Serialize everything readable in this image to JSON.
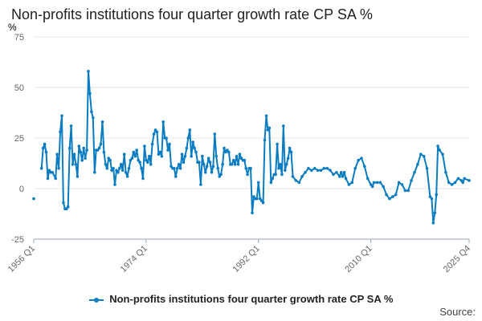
{
  "colors": {
    "series": "#0a7cc1",
    "grid": "#e6e6e6",
    "axis": "#9aa6b5",
    "tick_text": "#666666"
  },
  "source_label": "Source:",
  "chart_data": {
    "type": "line",
    "title": "Non-profits institutions four quarter growth rate CP SA %",
    "ylabel": "%",
    "xlabel": "",
    "ylim": [
      -25,
      75
    ],
    "y_ticks": [
      -25,
      0,
      25,
      50,
      75
    ],
    "x_ticks": [
      "1956 Q1",
      "1974 Q1",
      "1992 Q1",
      "2010 Q1",
      "2025 Q4"
    ],
    "x_start": "1956 Q1",
    "x_end": "2025 Q4",
    "legend_position": "bottom",
    "series": [
      {
        "name": "Non-profits institutions four quarter growth rate CP SA %",
        "anchor_points": [
          [
            1956.0,
            -5
          ],
          [
            1957.0,
            null
          ],
          [
            1957.25,
            10
          ],
          [
            1957.5,
            20
          ],
          [
            1957.75,
            22
          ],
          [
            1958.0,
            18
          ],
          [
            1958.25,
            5
          ],
          [
            1958.5,
            9
          ],
          [
            1958.75,
            8
          ],
          [
            1959.0,
            8
          ],
          [
            1959.5,
            5
          ],
          [
            1959.75,
            17
          ],
          [
            1960.0,
            10
          ],
          [
            1960.25,
            28
          ],
          [
            1960.5,
            36
          ],
          [
            1960.75,
            -7
          ],
          [
            1961.0,
            -10
          ],
          [
            1961.25,
            -10
          ],
          [
            1961.5,
            -9
          ],
          [
            1961.75,
            20
          ],
          [
            1962.0,
            31
          ],
          [
            1962.25,
            12
          ],
          [
            1962.5,
            17
          ],
          [
            1962.75,
            12
          ],
          [
            1963.0,
            6
          ],
          [
            1963.25,
            21
          ],
          [
            1963.5,
            18
          ],
          [
            1963.75,
            14
          ],
          [
            1964.0,
            20
          ],
          [
            1964.25,
            15
          ],
          [
            1964.5,
            19
          ],
          [
            1964.75,
            58
          ],
          [
            1965.0,
            47
          ],
          [
            1965.25,
            38
          ],
          [
            1965.5,
            35
          ],
          [
            1965.75,
            8
          ],
          [
            1966.0,
            19
          ],
          [
            1966.25,
            19
          ],
          [
            1966.5,
            20
          ],
          [
            1966.75,
            22
          ],
          [
            1967.0,
            33
          ],
          [
            1967.25,
            18
          ],
          [
            1967.5,
            12
          ],
          [
            1967.75,
            10
          ],
          [
            1968.0,
            15
          ],
          [
            1968.25,
            14
          ],
          [
            1968.5,
            9
          ],
          [
            1968.75,
            10
          ],
          [
            1969.0,
            2
          ],
          [
            1969.25,
            9
          ],
          [
            1969.5,
            8
          ],
          [
            1969.75,
            10
          ],
          [
            1970.0,
            12
          ],
          [
            1970.25,
            9
          ],
          [
            1970.5,
            17
          ],
          [
            1970.75,
            8
          ],
          [
            1971.0,
            6
          ],
          [
            1971.25,
            10
          ],
          [
            1971.5,
            14
          ],
          [
            1971.75,
            15
          ],
          [
            1972.0,
            18
          ],
          [
            1972.25,
            16
          ],
          [
            1972.5,
            19
          ],
          [
            1972.75,
            14
          ],
          [
            1973.0,
            13
          ],
          [
            1973.25,
            10
          ],
          [
            1973.5,
            5
          ],
          [
            1973.75,
            21
          ],
          [
            1974.0,
            14
          ],
          [
            1974.25,
            13
          ],
          [
            1974.5,
            16
          ],
          [
            1974.75,
            12
          ],
          [
            1975.0,
            22
          ],
          [
            1975.25,
            27
          ],
          [
            1975.5,
            29
          ],
          [
            1975.75,
            28
          ],
          [
            1976.0,
            17
          ],
          [
            1976.25,
            18
          ],
          [
            1976.5,
            16
          ],
          [
            1976.75,
            33
          ],
          [
            1977.0,
            25
          ],
          [
            1977.25,
            25
          ],
          [
            1977.5,
            19
          ],
          [
            1977.75,
            22
          ],
          [
            1978.0,
            11
          ],
          [
            1978.25,
            10
          ],
          [
            1978.5,
            10
          ],
          [
            1978.75,
            6
          ],
          [
            1979.0,
            10
          ],
          [
            1979.25,
            12
          ],
          [
            1979.5,
            10
          ],
          [
            1979.75,
            17
          ],
          [
            1980.0,
            13
          ],
          [
            1980.25,
            16
          ],
          [
            1980.5,
            20
          ],
          [
            1980.75,
            25
          ],
          [
            1981.0,
            29
          ],
          [
            1981.25,
            16
          ],
          [
            1981.5,
            23
          ],
          [
            1981.75,
            20
          ],
          [
            1982.0,
            18
          ],
          [
            1982.25,
            13
          ],
          [
            1982.5,
            13
          ],
          [
            1982.75,
            2
          ],
          [
            1983.0,
            16
          ],
          [
            1983.25,
            12
          ],
          [
            1983.5,
            8
          ],
          [
            1983.75,
            11
          ],
          [
            1984.0,
            15
          ],
          [
            1984.25,
            13
          ],
          [
            1984.5,
            8
          ],
          [
            1984.75,
            11
          ],
          [
            1985.0,
            27
          ],
          [
            1985.25,
            16
          ],
          [
            1985.5,
            10
          ],
          [
            1985.75,
            6
          ],
          [
            1986.0,
            7
          ],
          [
            1986.25,
            12
          ],
          [
            1986.5,
            20
          ],
          [
            1986.75,
            18
          ],
          [
            1987.0,
            19
          ],
          [
            1987.25,
            18
          ],
          [
            1987.5,
            12
          ],
          [
            1987.75,
            12
          ],
          [
            1988.0,
            14
          ],
          [
            1988.25,
            12
          ],
          [
            1988.5,
            16
          ],
          [
            1988.75,
            12
          ],
          [
            1989.0,
            17
          ],
          [
            1989.25,
            15
          ],
          [
            1989.5,
            14
          ],
          [
            1989.75,
            14
          ],
          [
            1990.0,
            10
          ],
          [
            1990.25,
            7
          ],
          [
            1990.5,
            10
          ],
          [
            1990.75,
            10
          ],
          [
            1991.0,
            -12
          ],
          [
            1991.25,
            -4
          ],
          [
            1991.5,
            -5
          ],
          [
            1991.75,
            -5
          ],
          [
            1992.0,
            3
          ],
          [
            1992.25,
            -5
          ],
          [
            1992.5,
            -6
          ],
          [
            1992.75,
            -7
          ],
          [
            1993.0,
            24
          ],
          [
            1993.25,
            36
          ],
          [
            1993.5,
            29
          ],
          [
            1993.75,
            30
          ],
          [
            1994.0,
            3
          ],
          [
            1994.25,
            5
          ],
          [
            1994.5,
            7
          ],
          [
            1994.75,
            7
          ],
          [
            1995.0,
            22
          ],
          [
            1995.25,
            10
          ],
          [
            1995.5,
            12
          ],
          [
            1995.75,
            7
          ],
          [
            1996.0,
            31
          ],
          [
            1996.25,
            9
          ],
          [
            1996.5,
            12
          ],
          [
            1996.75,
            15
          ],
          [
            1997.0,
            20
          ],
          [
            1997.25,
            18
          ],
          [
            1997.5,
            6
          ],
          [
            1998.0,
            4
          ],
          [
            1998.5,
            3
          ],
          [
            1999.0,
            6
          ],
          [
            1999.5,
            8
          ],
          [
            2000.0,
            10
          ],
          [
            2000.5,
            9
          ],
          [
            2001.0,
            10
          ],
          [
            2001.5,
            9
          ],
          [
            2002.0,
            9
          ],
          [
            2002.5,
            10
          ],
          [
            2003.0,
            10
          ],
          [
            2003.5,
            9
          ],
          [
            2004.0,
            7
          ],
          [
            2004.5,
            8
          ],
          [
            2005.0,
            6
          ],
          [
            2005.25,
            8
          ],
          [
            2005.5,
            6
          ],
          [
            2005.75,
            8
          ],
          [
            2006.0,
            5
          ],
          [
            2006.5,
            2
          ],
          [
            2007.0,
            3
          ],
          [
            2007.5,
            10
          ],
          [
            2008.0,
            14
          ],
          [
            2008.5,
            15
          ],
          [
            2009.0,
            11
          ],
          [
            2009.5,
            5
          ],
          [
            2010.0,
            2
          ],
          [
            2010.25,
            1
          ],
          [
            2010.5,
            3
          ],
          [
            2011.0,
            3
          ],
          [
            2011.5,
            3
          ],
          [
            2012.0,
            1
          ],
          [
            2012.5,
            -3
          ],
          [
            2013.0,
            -5
          ],
          [
            2013.5,
            -4
          ],
          [
            2014.0,
            -3
          ],
          [
            2014.5,
            3
          ],
          [
            2015.0,
            2
          ],
          [
            2015.5,
            -1
          ],
          [
            2016.0,
            -1
          ],
          [
            2016.5,
            4
          ],
          [
            2017.0,
            8
          ],
          [
            2017.5,
            12
          ],
          [
            2018.0,
            17
          ],
          [
            2018.5,
            16
          ],
          [
            2019.0,
            10
          ],
          [
            2019.5,
            -4
          ],
          [
            2019.75,
            -5
          ],
          [
            2020.0,
            -17
          ],
          [
            2020.25,
            -12
          ],
          [
            2020.5,
            -3
          ],
          [
            2020.75,
            21
          ],
          [
            2021.0,
            19
          ],
          [
            2021.5,
            17
          ],
          [
            2022.0,
            8
          ],
          [
            2022.5,
            3
          ],
          [
            2023.0,
            2
          ],
          [
            2023.5,
            3
          ],
          [
            2024.0,
            5
          ],
          [
            2024.5,
            4
          ],
          [
            2024.75,
            3
          ],
          [
            2025.0,
            5
          ],
          [
            2025.75,
            4
          ]
        ]
      }
    ]
  }
}
